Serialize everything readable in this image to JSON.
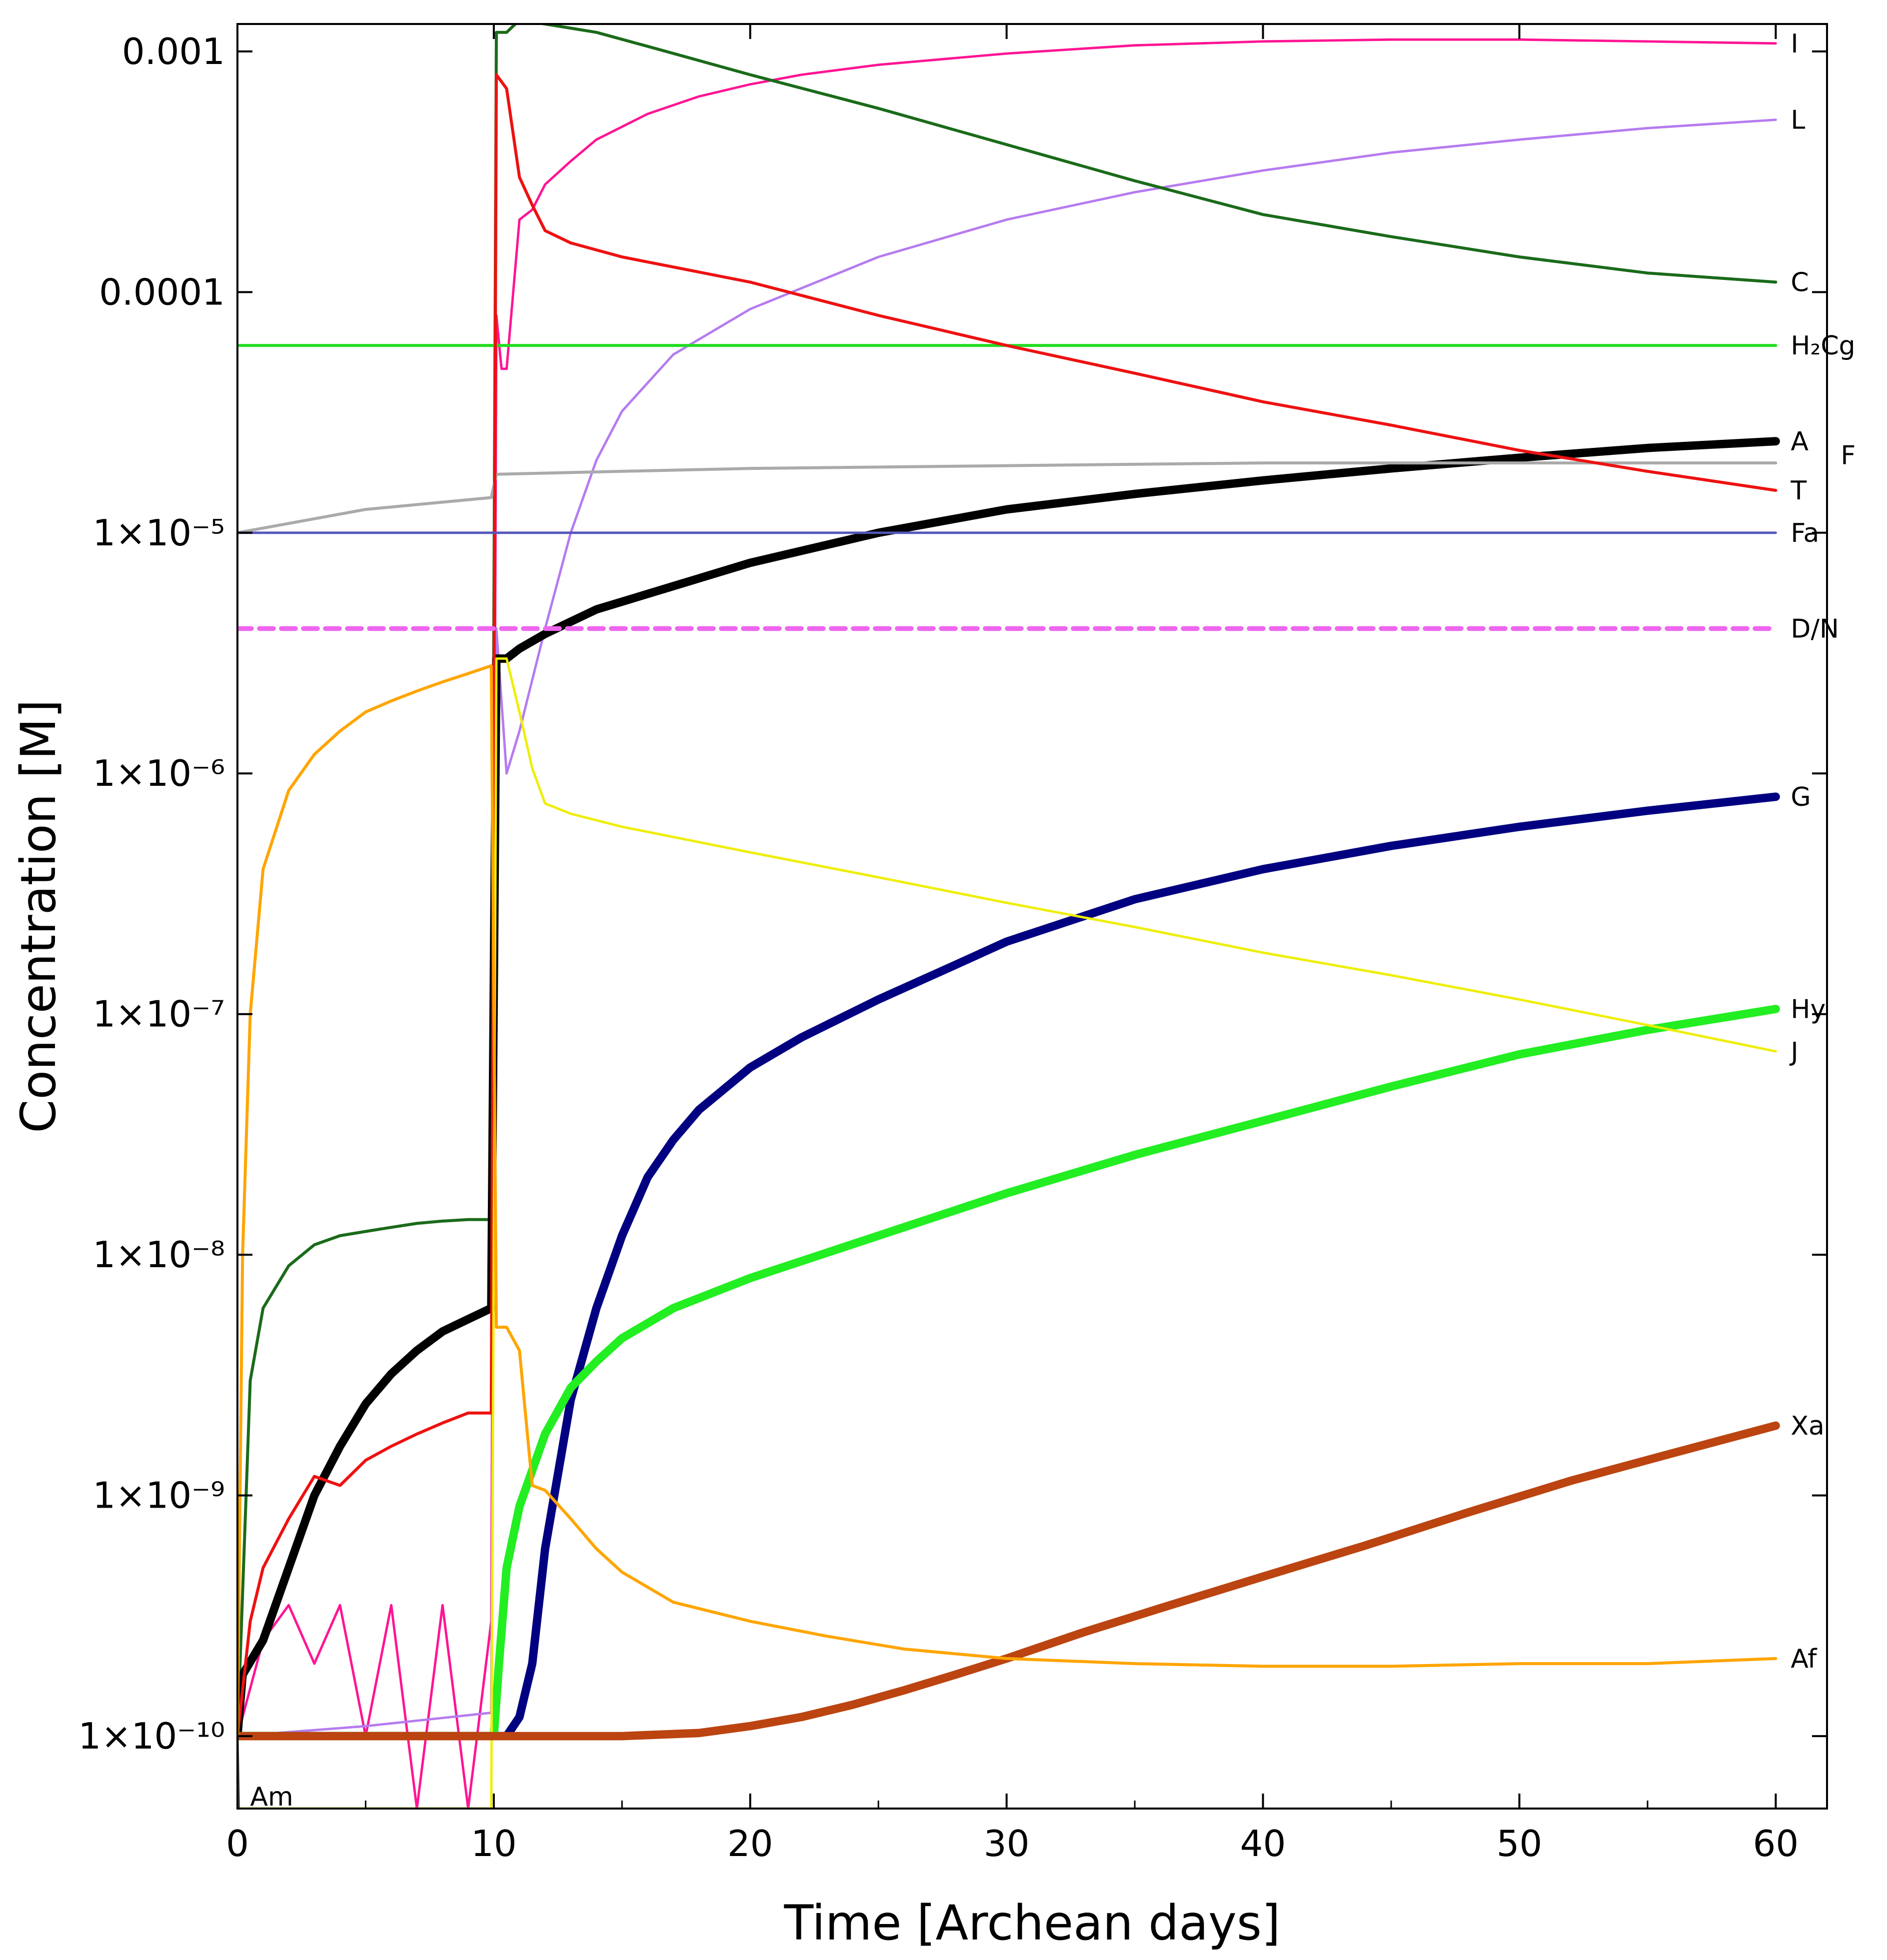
{
  "chart_data": {
    "type": "line",
    "title": "",
    "xlabel": "Time [Archean days]",
    "ylabel": "Concentration [M]",
    "yscale": "log",
    "xlim": [
      0,
      62
    ],
    "ylim": [
      5e-11,
      0.0013
    ],
    "grid": false,
    "x_ticks": [
      0,
      10,
      20,
      30,
      40,
      50,
      60
    ],
    "x_tick_labels": [
      "0",
      "10",
      "20",
      "30",
      "40",
      "50",
      "60"
    ],
    "y_ticks": [
      1e-10,
      1e-09,
      1e-08,
      1e-07,
      1e-06,
      1e-05,
      0.0001,
      0.001
    ],
    "y_tick_labels": [
      "1×10⁻¹⁰",
      "1×10⁻⁹",
      "1×10⁻⁸",
      "1×10⁻⁷",
      "1×10⁻⁶",
      "1×10⁻⁵",
      "0.0001",
      "0.001"
    ],
    "series": [
      {
        "name": "I",
        "label": "I",
        "color": "#ff1493",
        "width": 2,
        "x": [
          0,
          1,
          2,
          3,
          4,
          5,
          6,
          7,
          8,
          9,
          9.9,
          10.1,
          10.3,
          10.5,
          11,
          11.5,
          12,
          13,
          14,
          16,
          18,
          20,
          22,
          25,
          30,
          35,
          40,
          45,
          50,
          55,
          60
        ],
        "y": [
          1e-10,
          2.5e-10,
          3.5e-10,
          2e-10,
          3.5e-10,
          1e-10,
          3.5e-10,
          5e-11,
          3.5e-10,
          5e-11,
          3e-10,
          8e-05,
          4.8e-05,
          4.8e-05,
          0.0002,
          0.00022,
          0.00028,
          0.00035,
          0.00043,
          0.00055,
          0.00065,
          0.00073,
          0.0008,
          0.00088,
          0.00098,
          0.00106,
          0.0011,
          0.00112,
          0.00112,
          0.0011,
          0.00108
        ]
      },
      {
        "name": "L",
        "label": "L",
        "color": "#b57bef",
        "width": 2,
        "x": [
          0,
          5,
          9.9,
          10.1,
          10.5,
          11,
          12,
          13,
          14,
          15,
          17,
          20,
          25,
          30,
          35,
          40,
          45,
          50,
          55,
          60
        ],
        "y": [
          1e-10,
          1.1e-10,
          1.25e-10,
          4e-06,
          1e-06,
          1.5e-06,
          4e-06,
          1e-05,
          2e-05,
          3.2e-05,
          5.5e-05,
          8.5e-05,
          0.00014,
          0.0002,
          0.00026,
          0.00032,
          0.00038,
          0.00043,
          0.00048,
          0.00052
        ]
      },
      {
        "name": "C",
        "label": "C",
        "color": "#1a6b1a",
        "width": 2.5,
        "x": [
          0,
          0.5,
          1,
          2,
          3,
          4,
          5,
          6,
          7,
          8,
          9,
          9.9,
          10.1,
          10.5,
          11,
          12,
          14,
          16,
          20,
          25,
          30,
          35,
          40,
          45,
          50,
          55,
          60
        ],
        "y": [
          1e-10,
          3e-09,
          6e-09,
          9e-09,
          1.1e-08,
          1.2e-08,
          1.25e-08,
          1.3e-08,
          1.35e-08,
          1.38e-08,
          1.4e-08,
          1.4e-08,
          0.0012,
          0.0012,
          0.00135,
          0.0013,
          0.0012,
          0.00105,
          0.0008,
          0.00058,
          0.00041,
          0.00029,
          0.00021,
          0.00017,
          0.00014,
          0.00012,
          0.00011
        ]
      },
      {
        "name": "H2Cg",
        "label": "H₂Cg",
        "color": "#22dd22",
        "width": 2.5,
        "x": [
          0,
          60
        ],
        "y": [
          6e-05,
          6e-05
        ]
      },
      {
        "name": "A",
        "label": "A",
        "color": "#000000",
        "width": 7,
        "x": [
          0,
          0.2,
          1,
          2,
          3,
          4,
          5,
          6,
          7,
          8,
          9,
          9.9,
          10.1,
          10.5,
          11,
          12,
          14,
          17,
          20,
          25,
          30,
          35,
          40,
          45,
          50,
          55,
          60
        ],
        "y": [
          1e-10,
          1.8e-10,
          2.5e-10,
          5e-10,
          1e-09,
          1.6e-09,
          2.4e-09,
          3.2e-09,
          4e-09,
          4.8e-09,
          5.4e-09,
          6e-09,
          3e-06,
          3e-06,
          3.3e-06,
          3.8e-06,
          4.8e-06,
          6e-06,
          7.5e-06,
          1e-05,
          1.25e-05,
          1.45e-05,
          1.65e-05,
          1.85e-05,
          2.05e-05,
          2.25e-05,
          2.4e-05
        ]
      },
      {
        "name": "F",
        "label": "F",
        "color": "#aaaaaa",
        "width": 2.5,
        "x": [
          0,
          5,
          9.9,
          10.1,
          15,
          20,
          30,
          40,
          50,
          60
        ],
        "y": [
          1e-05,
          1.25e-05,
          1.4e-05,
          1.75e-05,
          1.8e-05,
          1.85e-05,
          1.9e-05,
          1.95e-05,
          1.95e-05,
          1.95e-05
        ]
      },
      {
        "name": "T",
        "label": "T",
        "color": "#ee1111",
        "width": 2.5,
        "x": [
          0,
          0.5,
          1,
          2,
          3,
          4,
          5,
          6,
          7,
          8,
          9,
          9.9,
          10.1,
          10.5,
          11,
          11.5,
          12,
          13,
          15,
          20,
          25,
          30,
          35,
          40,
          45,
          50,
          55,
          60
        ],
        "y": [
          1e-10,
          3e-10,
          5e-10,
          8e-10,
          1.2e-09,
          1.1e-09,
          1.4e-09,
          1.6e-09,
          1.8e-09,
          2e-09,
          2.2e-09,
          2.2e-09,
          0.0008,
          0.0007,
          0.0003,
          0.00023,
          0.00018,
          0.00016,
          0.00014,
          0.00011,
          8e-05,
          6e-05,
          4.6e-05,
          3.5e-05,
          2.8e-05,
          2.2e-05,
          1.8e-05,
          1.5e-05
        ]
      },
      {
        "name": "Fa",
        "label": "Fa",
        "color": "#5555bb",
        "width": 2,
        "x": [
          0,
          60
        ],
        "y": [
          1e-05,
          1e-05
        ]
      },
      {
        "name": "D/N",
        "label": "D/N",
        "color": "#ee66ee",
        "width": 4,
        "dashed": true,
        "x": [
          0,
          60
        ],
        "y": [
          4e-06,
          4e-06
        ]
      },
      {
        "name": "G",
        "label": "G",
        "color": "#000080",
        "width": 7,
        "x": [
          0,
          10,
          10.5,
          11,
          11.5,
          12,
          13,
          14,
          15,
          16,
          17,
          18,
          20,
          22,
          25,
          28,
          30,
          35,
          40,
          45,
          50,
          55,
          60
        ],
        "y": [
          1e-10,
          1e-10,
          1e-10,
          1.2e-10,
          2e-10,
          6e-10,
          2.5e-09,
          6e-09,
          1.2e-08,
          2.1e-08,
          3e-08,
          4e-08,
          6e-08,
          8e-08,
          1.15e-07,
          1.6e-07,
          2e-07,
          3e-07,
          4e-07,
          5e-07,
          6e-07,
          7e-07,
          8e-07
        ]
      },
      {
        "name": "Hy",
        "label": "Hy",
        "color": "#22ee22",
        "width": 7,
        "x": [
          0,
          10,
          10.2,
          10.5,
          11,
          12,
          13,
          14,
          15,
          17,
          20,
          25,
          30,
          35,
          40,
          45,
          50,
          55,
          60
        ],
        "y": [
          1e-10,
          1e-10,
          2e-10,
          5e-10,
          9e-10,
          1.8e-09,
          2.8e-09,
          3.6e-09,
          4.5e-09,
          6e-09,
          8e-09,
          1.2e-08,
          1.8e-08,
          2.6e-08,
          3.6e-08,
          5e-08,
          6.8e-08,
          8.6e-08,
          1.05e-07
        ]
      },
      {
        "name": "J",
        "label": "J",
        "color": "#eeee00",
        "width": 2,
        "x": [
          0,
          9.9,
          10.1,
          10.5,
          11,
          11.5,
          12,
          13,
          15,
          20,
          25,
          30,
          35,
          40,
          45,
          50,
          55,
          60
        ],
        "y": [
          5e-11,
          5e-11,
          3e-06,
          3e-06,
          1.8e-06,
          1.05e-06,
          7.5e-07,
          6.8e-07,
          6e-07,
          4.7e-07,
          3.7e-07,
          2.9e-07,
          2.3e-07,
          1.8e-07,
          1.45e-07,
          1.15e-07,
          9e-08,
          7e-08
        ]
      },
      {
        "name": "Xa",
        "label": "Xa",
        "color": "#bb4411",
        "width": 7,
        "x": [
          0,
          10,
          15,
          18,
          20,
          22,
          24,
          26,
          28,
          30,
          33,
          36,
          40,
          44,
          48,
          52,
          56,
          60
        ],
        "y": [
          1e-10,
          1e-10,
          1e-10,
          1.03e-10,
          1.1e-10,
          1.2e-10,
          1.35e-10,
          1.55e-10,
          1.8e-10,
          2.1e-10,
          2.7e-10,
          3.4e-10,
          4.6e-10,
          6.2e-10,
          8.5e-10,
          1.15e-09,
          1.5e-09,
          1.95e-09
        ]
      },
      {
        "name": "Af",
        "label": "Af",
        "color": "#ffa500",
        "width": 2.5,
        "x": [
          0,
          0.2,
          0.5,
          1,
          2,
          3,
          4,
          5,
          6,
          7,
          8,
          9,
          9.9,
          10.1,
          10.5,
          11,
          11.5,
          12,
          13,
          14,
          15,
          17,
          20,
          23,
          26,
          30,
          35,
          40,
          45,
          50,
          55,
          60
        ],
        "y": [
          1e-10,
          1e-08,
          1e-07,
          4e-07,
          8.5e-07,
          1.2e-06,
          1.5e-06,
          1.8e-06,
          2e-06,
          2.2e-06,
          2.4e-06,
          2.6e-06,
          2.8e-06,
          5e-09,
          5e-09,
          4e-09,
          1.1e-09,
          1.05e-09,
          8e-10,
          6e-10,
          4.8e-10,
          3.6e-10,
          3e-10,
          2.6e-10,
          2.3e-10,
          2.1e-10,
          2e-10,
          1.95e-10,
          1.95e-10,
          2e-10,
          2e-10,
          2.1e-10
        ]
      },
      {
        "name": "Am",
        "label": "Am",
        "color": "#444444",
        "width": 2,
        "x": [
          0,
          0.05
        ],
        "y": [
          1e-10,
          5e-11
        ]
      }
    ]
  }
}
